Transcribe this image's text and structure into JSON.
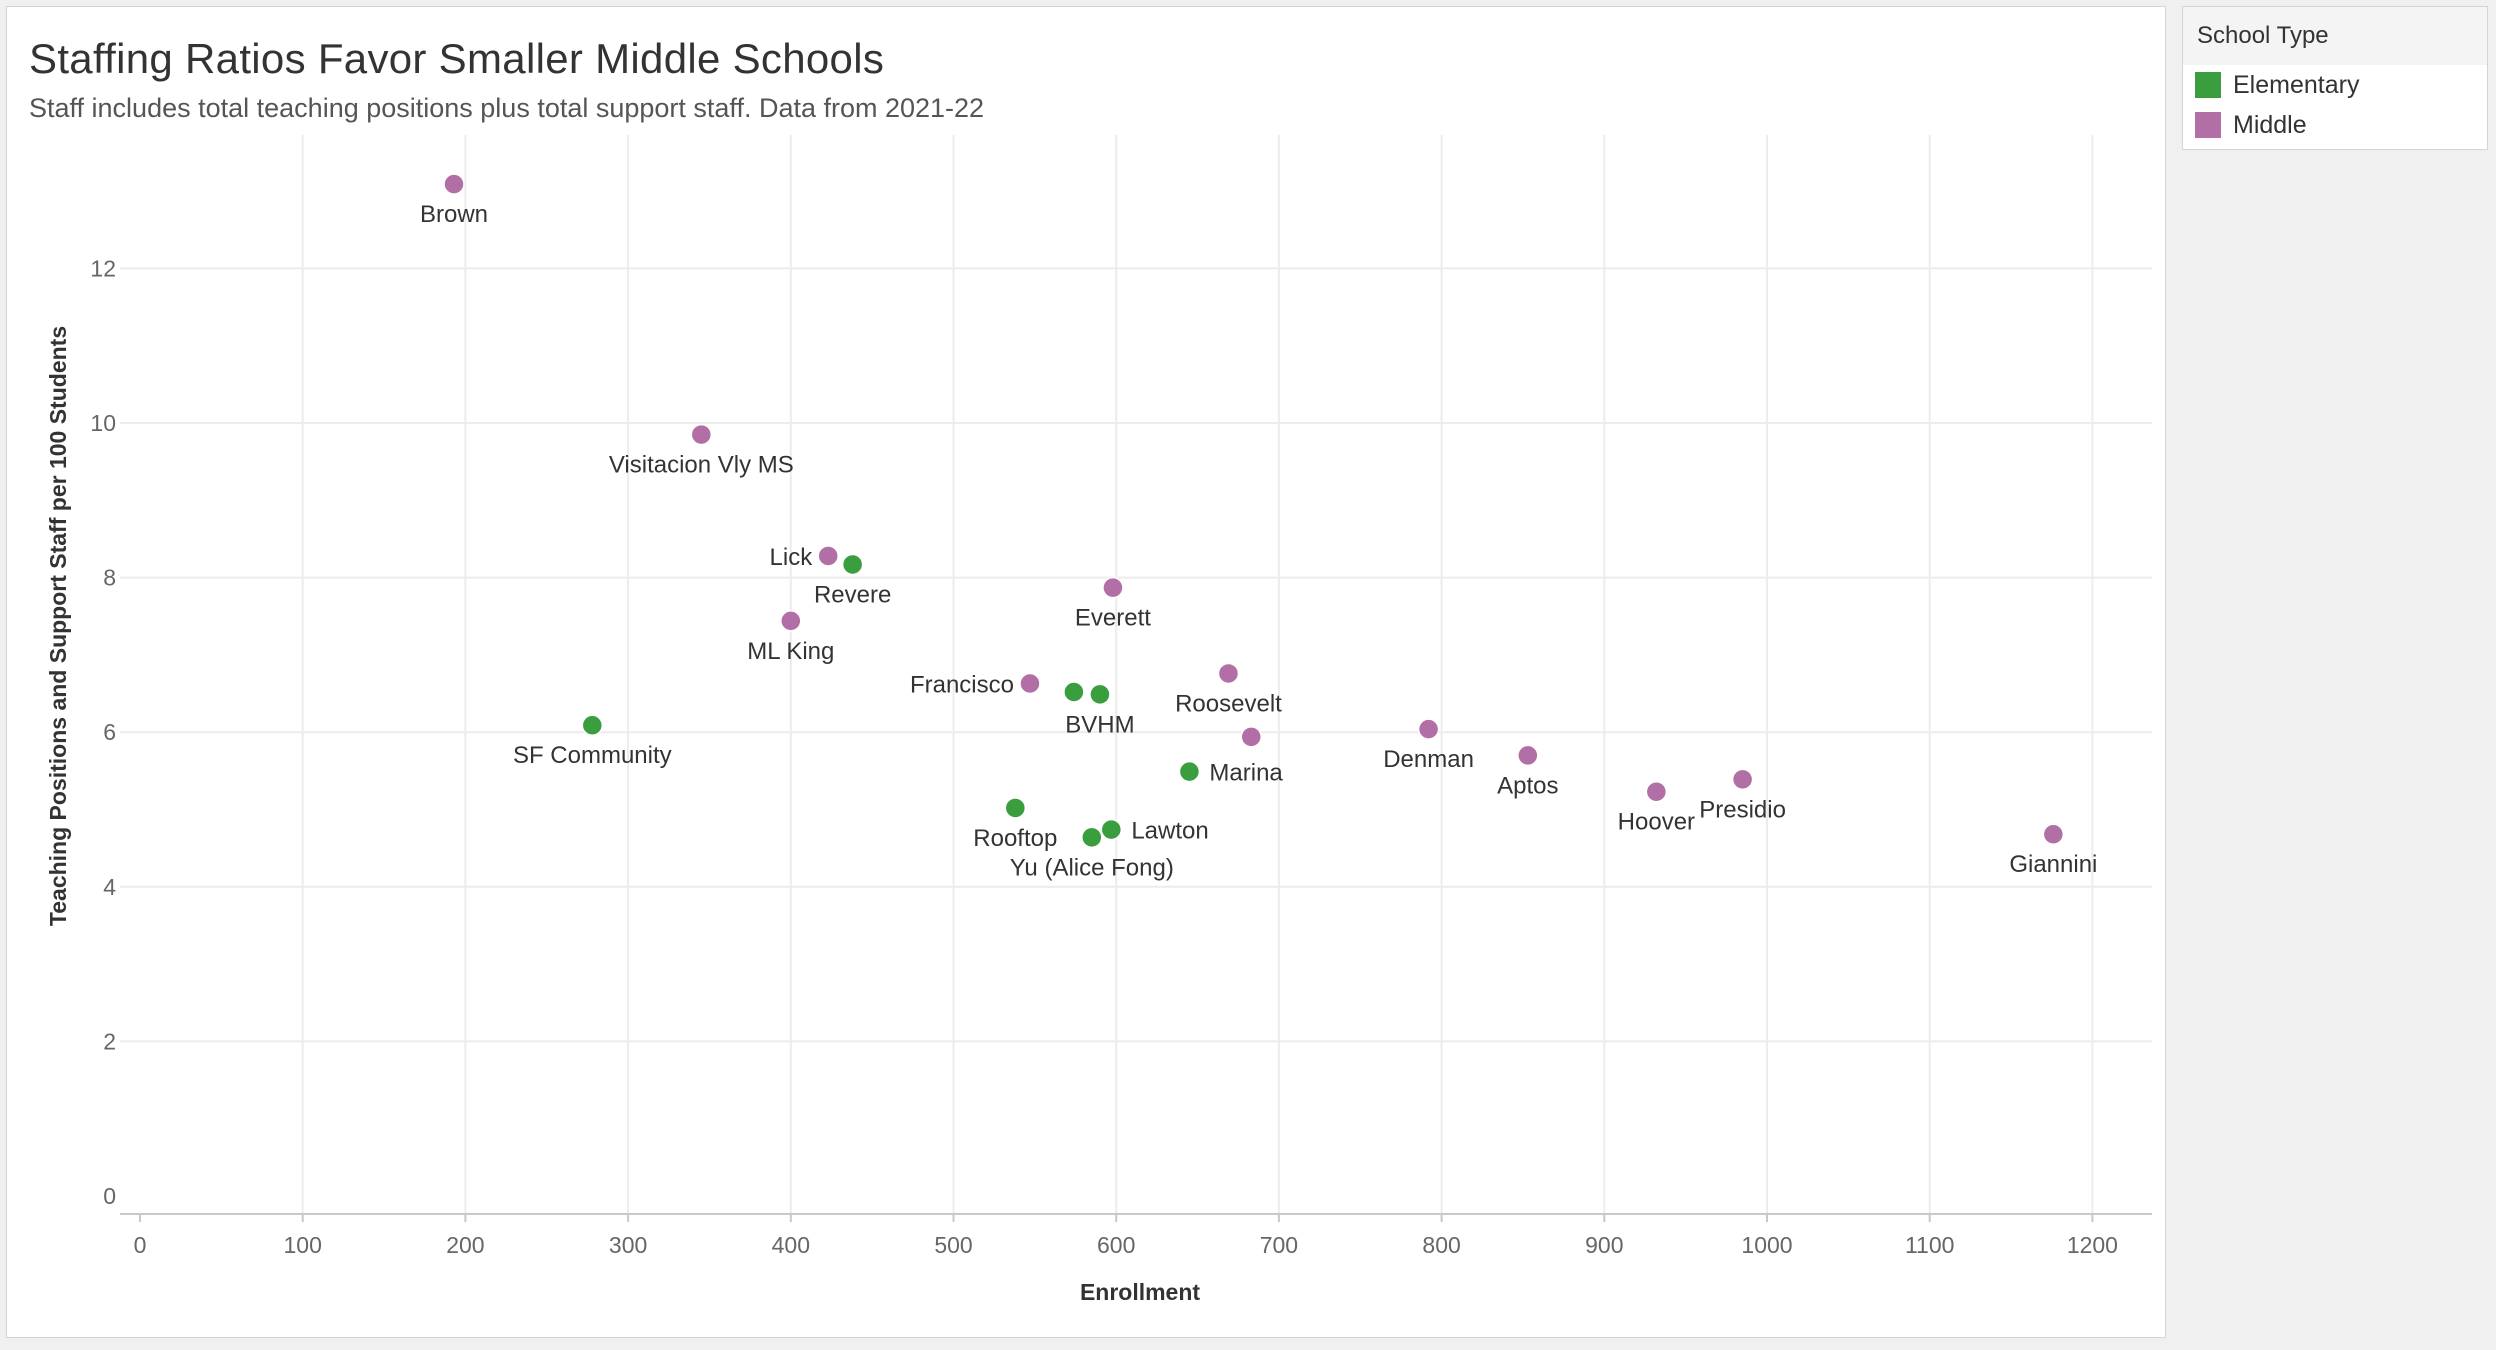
{
  "chart_data": {
    "type": "scatter",
    "title": "Staffing Ratios Favor Smaller Middle Schools",
    "subtitle": "Staff includes total teaching positions plus total support staff. Data from 2021-22",
    "xlabel": "Enrollment",
    "ylabel": "Teaching Positions and Support Staff per 100 Students",
    "xlim": [
      0,
      1260
    ],
    "ylim": [
      0,
      13.5
    ],
    "xticks": [
      0,
      100,
      200,
      300,
      400,
      500,
      600,
      700,
      800,
      900,
      1000,
      1100,
      1200
    ],
    "yticks": [
      0,
      2,
      4,
      6,
      8,
      10,
      12
    ],
    "grid": true,
    "legend": {
      "title": "School Type",
      "placement": "top-right",
      "entries": [
        {
          "name": "Elementary",
          "color": "#3a9d3e"
        },
        {
          "name": "Middle",
          "color": "#b26fa5"
        }
      ]
    },
    "series": [
      {
        "name": "Elementary",
        "color": "#3a9d3e",
        "points": [
          {
            "label": "Revere",
            "x": 438,
            "y": 8.17,
            "label_pos": "below"
          },
          {
            "label": "SF Community",
            "x": 278,
            "y": 6.09,
            "label_pos": "below"
          },
          {
            "label": "BVHM",
            "x": 590,
            "y": 6.49,
            "label_pos": "below"
          },
          {
            "label": "",
            "x": 574,
            "y": 6.52,
            "label_pos": "none"
          },
          {
            "label": "Marina",
            "x": 645,
            "y": 5.49,
            "label_pos": "right"
          },
          {
            "label": "Rooftop",
            "x": 538,
            "y": 5.02,
            "label_pos": "below"
          },
          {
            "label": "Lawton",
            "x": 597,
            "y": 4.74,
            "label_pos": "right"
          },
          {
            "label": "Yu (Alice Fong)",
            "x": 585,
            "y": 4.64,
            "label_pos": "below"
          }
        ]
      },
      {
        "name": "Middle",
        "color": "#b26fa5",
        "points": [
          {
            "label": "Brown",
            "x": 193,
            "y": 13.09,
            "label_pos": "below"
          },
          {
            "label": "Visitacion Vly MS",
            "x": 345,
            "y": 9.85,
            "label_pos": "below"
          },
          {
            "label": "Lick",
            "x": 423,
            "y": 8.28,
            "label_pos": "left"
          },
          {
            "label": "ML King",
            "x": 400,
            "y": 7.44,
            "label_pos": "below"
          },
          {
            "label": "Everett",
            "x": 598,
            "y": 7.87,
            "label_pos": "below"
          },
          {
            "label": "Francisco",
            "x": 547,
            "y": 6.63,
            "label_pos": "left"
          },
          {
            "label": "Roosevelt",
            "x": 669,
            "y": 6.76,
            "label_pos": "below"
          },
          {
            "label": "",
            "x": 683,
            "y": 5.94,
            "label_pos": "none"
          },
          {
            "label": "Denman",
            "x": 792,
            "y": 6.04,
            "label_pos": "below"
          },
          {
            "label": "Aptos",
            "x": 853,
            "y": 5.7,
            "label_pos": "below"
          },
          {
            "label": "Hoover",
            "x": 932,
            "y": 5.23,
            "label_pos": "below"
          },
          {
            "label": "Presidio",
            "x": 985,
            "y": 5.39,
            "label_pos": "below"
          },
          {
            "label": "Giannini",
            "x": 1176,
            "y": 4.68,
            "label_pos": "below"
          }
        ]
      }
    ]
  }
}
